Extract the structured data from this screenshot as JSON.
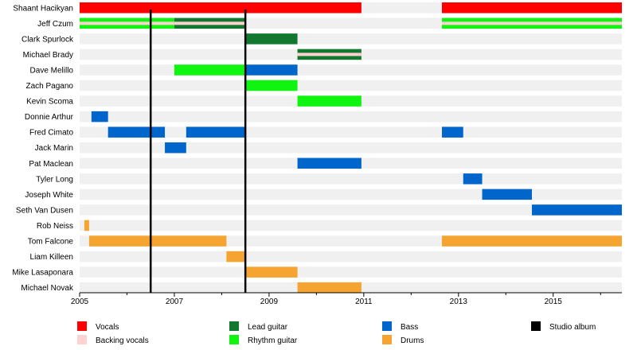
{
  "chart_data": {
    "type": "timeline",
    "title": "",
    "xlabel": "",
    "ylabel": "",
    "xlim": [
      2005,
      2016.45
    ],
    "x_ticks": [
      "2005",
      "2007",
      "2009",
      "2011",
      "2013",
      "2015"
    ],
    "grid": true,
    "legend_position": "bottom",
    "colors": {
      "vocals": "#ff0000",
      "backing_vocals": "#ffd1d1",
      "lead_guitar": "#13782f",
      "rhythm_guitar": "#0ff50f",
      "bass": "#0066cc",
      "drums": "#f5a331",
      "studio_album": "#000000",
      "row_band": "#f0f0f0"
    },
    "legend": [
      {
        "key": "vocals",
        "label": "Vocals"
      },
      {
        "key": "backing_vocals",
        "label": "Backing vocals"
      },
      {
        "key": "lead_guitar",
        "label": "Lead guitar"
      },
      {
        "key": "rhythm_guitar",
        "label": "Rhythm guitar"
      },
      {
        "key": "bass",
        "label": "Bass"
      },
      {
        "key": "drums",
        "label": "Drums"
      },
      {
        "key": "studio_album",
        "label": "Studio album"
      }
    ],
    "studio_albums": [
      2006.5,
      2008.5
    ],
    "members": [
      {
        "name": "Shaant Hacikyan",
        "periods": [
          {
            "role": "vocals",
            "start": 2005.0,
            "end": 2010.95
          },
          {
            "role": "vocals",
            "start": 2012.65,
            "end": 2016.45
          }
        ]
      },
      {
        "name": "Jeff Czum",
        "periods": [
          {
            "role": "rhythm_guitar",
            "start": 2005.0,
            "end": 2007.0
          },
          {
            "role": "lead_guitar",
            "start": 2007.0,
            "end": 2008.5
          },
          {
            "role": "rhythm_guitar",
            "start": 2012.65,
            "end": 2016.45
          }
        ],
        "overlay": {
          "role": "backing_vocals"
        }
      },
      {
        "name": "Clark Spurlock",
        "periods": [
          {
            "role": "lead_guitar",
            "start": 2008.5,
            "end": 2009.6
          }
        ]
      },
      {
        "name": "Michael Brady",
        "periods": [
          {
            "role": "lead_guitar",
            "start": 2009.6,
            "end": 2010.95
          }
        ],
        "overlay": {
          "role": "backing_vocals"
        }
      },
      {
        "name": "Dave Melillo",
        "periods": [
          {
            "role": "rhythm_guitar",
            "start": 2007.0,
            "end": 2008.5
          },
          {
            "role": "bass",
            "start": 2008.5,
            "end": 2009.6
          }
        ]
      },
      {
        "name": "Zach Pagano",
        "periods": [
          {
            "role": "rhythm_guitar",
            "start": 2008.5,
            "end": 2009.6
          }
        ]
      },
      {
        "name": "Kevin Scoma",
        "periods": [
          {
            "role": "rhythm_guitar",
            "start": 2009.6,
            "end": 2010.95
          }
        ]
      },
      {
        "name": "Donnie Arthur",
        "periods": [
          {
            "role": "bass",
            "start": 2005.25,
            "end": 2005.6
          }
        ]
      },
      {
        "name": "Fred Cimato",
        "periods": [
          {
            "role": "bass",
            "start": 2005.6,
            "end": 2006.8
          },
          {
            "role": "bass",
            "start": 2007.25,
            "end": 2008.5
          },
          {
            "role": "bass",
            "start": 2012.65,
            "end": 2013.1
          }
        ]
      },
      {
        "name": "Jack Marin",
        "periods": [
          {
            "role": "bass",
            "start": 2006.8,
            "end": 2007.25
          }
        ]
      },
      {
        "name": "Pat Maclean",
        "periods": [
          {
            "role": "bass",
            "start": 2009.6,
            "end": 2010.95
          }
        ]
      },
      {
        "name": "Tyler Long",
        "periods": [
          {
            "role": "bass",
            "start": 2013.1,
            "end": 2013.5
          }
        ]
      },
      {
        "name": "Joseph White",
        "periods": [
          {
            "role": "bass",
            "start": 2013.5,
            "end": 2014.55
          }
        ]
      },
      {
        "name": "Seth Van Dusen",
        "periods": [
          {
            "role": "bass",
            "start": 2014.55,
            "end": 2016.45
          }
        ]
      },
      {
        "name": "Rob Neiss",
        "periods": [
          {
            "role": "drums",
            "start": 2005.1,
            "end": 2005.2
          }
        ]
      },
      {
        "name": "Tom Falcone",
        "periods": [
          {
            "role": "drums",
            "start": 2005.2,
            "end": 2008.1
          },
          {
            "role": "drums",
            "start": 2012.65,
            "end": 2016.45
          }
        ]
      },
      {
        "name": "Liam Killeen",
        "periods": [
          {
            "role": "drums",
            "start": 2008.1,
            "end": 2008.5
          }
        ]
      },
      {
        "name": "Mike Lasaponara",
        "periods": [
          {
            "role": "drums",
            "start": 2008.5,
            "end": 2009.6
          }
        ]
      },
      {
        "name": "Michael Novak",
        "periods": [
          {
            "role": "drums",
            "start": 2009.6,
            "end": 2010.95
          }
        ]
      }
    ]
  }
}
